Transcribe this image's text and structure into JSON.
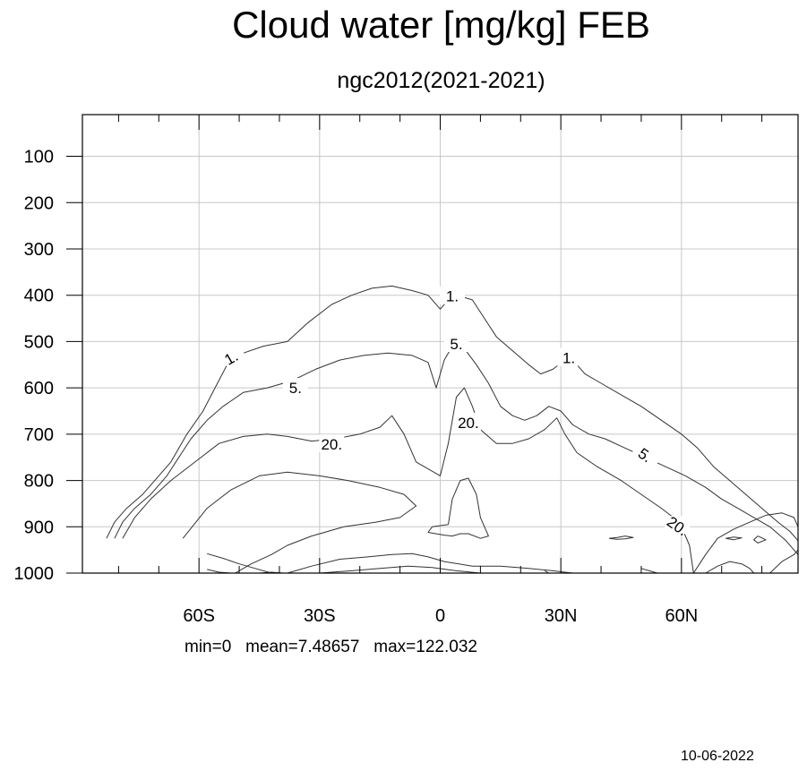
{
  "title": "Cloud water [mg/kg] FEB",
  "subtitle": "ngc2012(2021-2021)",
  "stats": {
    "min": "min=0",
    "mean": "mean=7.48657",
    "max": "max=122.032"
  },
  "date": "10-06-2022",
  "chart_data": {
    "type": "contour",
    "xlim": [
      -89,
      89
    ],
    "ylim": [
      1000,
      10
    ],
    "x_ticks": [
      {
        "v": -60,
        "label": "60S"
      },
      {
        "v": -30,
        "label": "30S"
      },
      {
        "v": 0,
        "label": "0"
      },
      {
        "v": 30,
        "label": "30N"
      },
      {
        "v": 60,
        "label": "60N"
      }
    ],
    "y_ticks": [
      {
        "v": 100,
        "label": "100"
      },
      {
        "v": 200,
        "label": "200"
      },
      {
        "v": 300,
        "label": "300"
      },
      {
        "v": 400,
        "label": "400"
      },
      {
        "v": 500,
        "label": "500"
      },
      {
        "v": 600,
        "label": "600"
      },
      {
        "v": 700,
        "label": "700"
      },
      {
        "v": 800,
        "label": "800"
      },
      {
        "v": 900,
        "label": "900"
      },
      {
        "v": 1000,
        "label": "1000"
      }
    ],
    "grid": true,
    "contours": [
      {
        "level": "1.",
        "label_at": [
          [
            -52,
            535
          ],
          [
            3,
            402
          ],
          [
            32,
            535
          ]
        ],
        "points": [
          [
            -83,
            925
          ],
          [
            -81,
            890
          ],
          [
            -78,
            860
          ],
          [
            -74,
            830
          ],
          [
            -71,
            800
          ],
          [
            -67,
            760
          ],
          [
            -63,
            700
          ],
          [
            -59,
            650
          ],
          [
            -56,
            600
          ],
          [
            -53,
            550
          ],
          [
            -49,
            525
          ],
          [
            -44,
            510
          ],
          [
            -38,
            500
          ],
          [
            -33,
            460
          ],
          [
            -27,
            420
          ],
          [
            -22,
            400
          ],
          [
            -17,
            385
          ],
          [
            -12,
            380
          ],
          [
            -7,
            390
          ],
          [
            -3,
            400
          ],
          [
            0,
            430
          ],
          [
            2,
            410
          ],
          [
            4,
            400
          ],
          [
            8,
            410
          ],
          [
            11,
            450
          ],
          [
            14,
            490
          ],
          [
            18,
            520
          ],
          [
            22,
            550
          ],
          [
            25,
            570
          ],
          [
            28,
            560
          ],
          [
            31,
            540
          ],
          [
            34,
            550
          ],
          [
            36,
            570
          ],
          [
            40,
            590
          ],
          [
            45,
            615
          ],
          [
            50,
            640
          ],
          [
            55,
            670
          ],
          [
            60,
            700
          ],
          [
            64,
            730
          ],
          [
            68,
            770
          ],
          [
            72,
            800
          ],
          [
            76,
            830
          ],
          [
            80,
            860
          ],
          [
            84,
            890
          ],
          [
            87,
            910
          ],
          [
            89,
            930
          ]
        ]
      },
      {
        "level": "5.",
        "label_at": [
          [
            -36,
            600
          ],
          [
            4,
            505
          ],
          [
            51,
            745
          ]
        ],
        "points": [
          [
            -81,
            925
          ],
          [
            -79,
            890
          ],
          [
            -76,
            860
          ],
          [
            -72,
            830
          ],
          [
            -68,
            790
          ],
          [
            -65,
            750
          ],
          [
            -62,
            710
          ],
          [
            -58,
            670
          ],
          [
            -54,
            640
          ],
          [
            -49,
            610
          ],
          [
            -43,
            600
          ],
          [
            -37,
            585
          ],
          [
            -31,
            560
          ],
          [
            -25,
            540
          ],
          [
            -19,
            530
          ],
          [
            -13,
            525
          ],
          [
            -7,
            530
          ],
          [
            -3,
            545
          ],
          [
            -1,
            600
          ],
          [
            1,
            540
          ],
          [
            3,
            510
          ],
          [
            6,
            515
          ],
          [
            9,
            550
          ],
          [
            12,
            590
          ],
          [
            15,
            640
          ],
          [
            18,
            660
          ],
          [
            21,
            670
          ],
          [
            24,
            660
          ],
          [
            27,
            640
          ],
          [
            30,
            650
          ],
          [
            33,
            680
          ],
          [
            37,
            700
          ],
          [
            41,
            710
          ],
          [
            46,
            730
          ],
          [
            51,
            750
          ],
          [
            56,
            770
          ],
          [
            61,
            790
          ],
          [
            66,
            815
          ],
          [
            70,
            840
          ],
          [
            74,
            860
          ],
          [
            78,
            880
          ],
          [
            82,
            900
          ],
          [
            86,
            930
          ],
          [
            89,
            960
          ]
        ]
      },
      {
        "level": "20.",
        "label_at": [
          [
            -27,
            722
          ],
          [
            7,
            675
          ],
          [
            59,
            898
          ]
        ],
        "points": [
          [
            -79,
            925
          ],
          [
            -76,
            880
          ],
          [
            -72,
            840
          ],
          [
            -67,
            800
          ],
          [
            -61,
            760
          ],
          [
            -55,
            720
          ],
          [
            -49,
            705
          ],
          [
            -43,
            700
          ],
          [
            -38,
            705
          ],
          [
            -32,
            715
          ],
          [
            -26,
            710
          ],
          [
            -20,
            700
          ],
          [
            -15,
            685
          ],
          [
            -12,
            660
          ],
          [
            -9,
            700
          ],
          [
            -6,
            760
          ],
          [
            -2,
            780
          ],
          [
            0,
            790
          ],
          [
            2,
            720
          ],
          [
            4,
            620
          ],
          [
            6,
            600
          ],
          [
            8,
            640
          ],
          [
            10,
            690
          ],
          [
            14,
            720
          ],
          [
            18,
            720
          ],
          [
            22,
            710
          ],
          [
            26,
            690
          ],
          [
            29,
            665
          ],
          [
            31,
            700
          ],
          [
            34,
            740
          ],
          [
            39,
            770
          ],
          [
            45,
            800
          ],
          [
            50,
            830
          ],
          [
            55,
            860
          ],
          [
            58,
            880
          ],
          [
            60,
            900
          ],
          [
            62,
            940
          ],
          [
            63,
            1000
          ]
        ]
      },
      {
        "level": "",
        "label_at": [],
        "points": [
          [
            -64,
            925
          ],
          [
            -58,
            860
          ],
          [
            -52,
            820
          ],
          [
            -45,
            790
          ],
          [
            -38,
            782
          ],
          [
            -30,
            790
          ],
          [
            -23,
            800
          ],
          [
            -15,
            815
          ],
          [
            -9,
            830
          ],
          [
            -6,
            855
          ],
          [
            -10,
            880
          ],
          [
            -16,
            890
          ],
          [
            -24,
            900
          ],
          [
            -32,
            920
          ],
          [
            -38,
            940
          ],
          [
            -42,
            960
          ],
          [
            -47,
            980
          ],
          [
            -51,
            1000
          ]
        ]
      },
      {
        "level": "",
        "label_at": [],
        "points": [
          [
            2,
            895
          ],
          [
            3,
            840
          ],
          [
            5,
            800
          ],
          [
            7,
            795
          ],
          [
            9,
            830
          ],
          [
            10,
            880
          ],
          [
            11,
            900
          ],
          [
            12,
            920
          ],
          [
            10,
            925
          ],
          [
            7,
            915
          ],
          [
            5,
            915
          ],
          [
            3,
            920
          ],
          [
            1,
            918
          ],
          [
            -3,
            912
          ],
          [
            -2,
            900
          ],
          [
            2,
            895
          ]
        ]
      },
      {
        "level": "",
        "label_at": [],
        "points": [
          [
            -38,
            1000
          ],
          [
            -32,
            985
          ],
          [
            -25,
            970
          ],
          [
            -18,
            965
          ],
          [
            -12,
            960
          ],
          [
            -7,
            958
          ],
          [
            -3,
            965
          ],
          [
            1,
            975
          ],
          [
            8,
            985
          ],
          [
            15,
            985
          ],
          [
            22,
            990
          ],
          [
            28,
            995
          ],
          [
            33,
            1000
          ]
        ]
      },
      {
        "level": "",
        "label_at": [],
        "points": [
          [
            -30,
            1000
          ],
          [
            -22,
            995
          ],
          [
            -15,
            990
          ],
          [
            -8,
            985
          ],
          [
            -2,
            988
          ],
          [
            4,
            995
          ],
          [
            10,
            1000
          ]
        ]
      },
      {
        "level": "",
        "label_at": [],
        "points": [
          [
            -58,
            992
          ],
          [
            -55,
            998
          ],
          [
            -52,
            1000
          ]
        ]
      },
      {
        "level": "",
        "label_at": [],
        "points": [
          [
            -45,
            1000
          ],
          [
            -42,
            998
          ],
          [
            -39,
            1000
          ]
        ]
      },
      {
        "level": "",
        "label_at": [],
        "points": [
          [
            -58,
            958
          ],
          [
            -54,
            968
          ],
          [
            -50,
            980
          ],
          [
            -46,
            990
          ],
          [
            -42,
            1000
          ]
        ]
      },
      {
        "level": "",
        "label_at": [],
        "points": [
          [
            42,
            925
          ],
          [
            44,
            923
          ],
          [
            46,
            920
          ],
          [
            48,
            923
          ],
          [
            46,
            926
          ],
          [
            44,
            927
          ],
          [
            42,
            925
          ]
        ]
      },
      {
        "level": "",
        "label_at": [],
        "points": [
          [
            71,
            925
          ],
          [
            73,
            922
          ],
          [
            75,
            924
          ],
          [
            73,
            928
          ],
          [
            71,
            925
          ]
        ]
      },
      {
        "level": "",
        "label_at": [],
        "points": [
          [
            63,
            1000
          ],
          [
            66,
            960
          ],
          [
            69,
            925
          ],
          [
            73,
            905
          ],
          [
            77,
            890
          ],
          [
            81,
            875
          ],
          [
            85,
            870
          ],
          [
            88,
            880
          ],
          [
            89,
            900
          ]
        ]
      },
      {
        "level": "",
        "label_at": [],
        "points": [
          [
            66,
            1000
          ],
          [
            69,
            985
          ],
          [
            72,
            975
          ],
          [
            75,
            980
          ],
          [
            77,
            990
          ],
          [
            78,
            1000
          ]
        ]
      },
      {
        "level": "",
        "label_at": [],
        "points": [
          [
            82,
            1000
          ],
          [
            85,
            975
          ],
          [
            88,
            960
          ],
          [
            89,
            950
          ]
        ]
      },
      {
        "level": "",
        "label_at": [],
        "points": [
          [
            79,
            920
          ],
          [
            81,
            928
          ],
          [
            79,
            935
          ],
          [
            78,
            928
          ],
          [
            79,
            920
          ]
        ]
      },
      {
        "level": "",
        "label_at": [],
        "points": [
          [
            50,
            990
          ],
          [
            52,
            995
          ],
          [
            54,
            1000
          ]
        ]
      },
      {
        "level": "",
        "label_at": [],
        "points": [
          [
            26,
            995
          ],
          [
            27,
            1000
          ]
        ]
      }
    ]
  }
}
